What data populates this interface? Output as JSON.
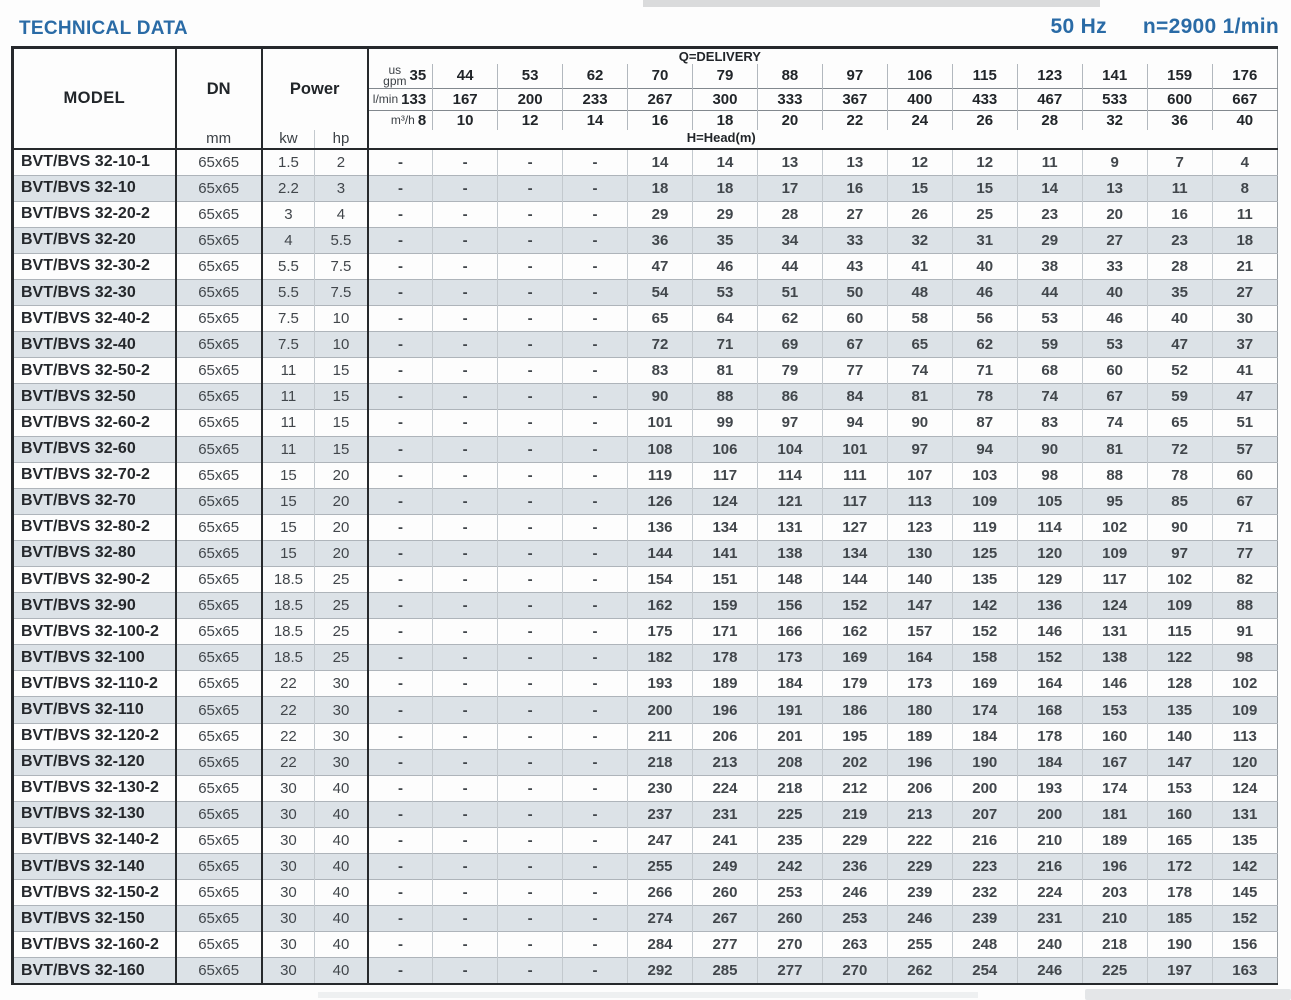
{
  "title": "TECHNICAL DATA",
  "frequency": "50 Hz",
  "speed": "n=2900 1/min",
  "table": {
    "model_header": "MODEL",
    "dn_header": "DN",
    "dn_unit": "mm",
    "power_header": "Power",
    "power_units": [
      "kw",
      "hp"
    ],
    "delivery_header": "Q=DELIVERY",
    "head_header": "H=Head(m)",
    "unit_rows": [
      {
        "unit": "us gpm",
        "values": [
          "35",
          "44",
          "53",
          "62",
          "70",
          "79",
          "88",
          "97",
          "106",
          "115",
          "123",
          "141",
          "159",
          "176"
        ]
      },
      {
        "unit": "l/min",
        "values": [
          "133",
          "167",
          "200",
          "233",
          "267",
          "300",
          "333",
          "367",
          "400",
          "433",
          "467",
          "533",
          "600",
          "667"
        ]
      },
      {
        "unit": "m³/h",
        "values": [
          "8",
          "10",
          "12",
          "14",
          "16",
          "18",
          "20",
          "22",
          "24",
          "26",
          "28",
          "32",
          "36",
          "40"
        ]
      }
    ],
    "rows": [
      {
        "model": "BVT/BVS 32-10-1",
        "dn": "65x65",
        "kw": "1.5",
        "hp": "2",
        "head": [
          "-",
          "-",
          "-",
          "-",
          "14",
          "14",
          "13",
          "13",
          "12",
          "12",
          "11",
          "9",
          "7",
          "4"
        ]
      },
      {
        "model": "BVT/BVS 32-10",
        "dn": "65x65",
        "kw": "2.2",
        "hp": "3",
        "head": [
          "-",
          "-",
          "-",
          "-",
          "18",
          "18",
          "17",
          "16",
          "15",
          "15",
          "14",
          "13",
          "11",
          "8"
        ]
      },
      {
        "model": "BVT/BVS 32-20-2",
        "dn": "65x65",
        "kw": "3",
        "hp": "4",
        "head": [
          "-",
          "-",
          "-",
          "-",
          "29",
          "29",
          "28",
          "27",
          "26",
          "25",
          "23",
          "20",
          "16",
          "11"
        ]
      },
      {
        "model": "BVT/BVS 32-20",
        "dn": "65x65",
        "kw": "4",
        "hp": "5.5",
        "head": [
          "-",
          "-",
          "-",
          "-",
          "36",
          "35",
          "34",
          "33",
          "32",
          "31",
          "29",
          "27",
          "23",
          "18"
        ]
      },
      {
        "model": "BVT/BVS 32-30-2",
        "dn": "65x65",
        "kw": "5.5",
        "hp": "7.5",
        "head": [
          "-",
          "-",
          "-",
          "-",
          "47",
          "46",
          "44",
          "43",
          "41",
          "40",
          "38",
          "33",
          "28",
          "21"
        ]
      },
      {
        "model": "BVT/BVS 32-30",
        "dn": "65x65",
        "kw": "5.5",
        "hp": "7.5",
        "head": [
          "-",
          "-",
          "-",
          "-",
          "54",
          "53",
          "51",
          "50",
          "48",
          "46",
          "44",
          "40",
          "35",
          "27"
        ]
      },
      {
        "model": "BVT/BVS 32-40-2",
        "dn": "65x65",
        "kw": "7.5",
        "hp": "10",
        "head": [
          "-",
          "-",
          "-",
          "-",
          "65",
          "64",
          "62",
          "60",
          "58",
          "56",
          "53",
          "46",
          "40",
          "30"
        ]
      },
      {
        "model": "BVT/BVS 32-40",
        "dn": "65x65",
        "kw": "7.5",
        "hp": "10",
        "head": [
          "-",
          "-",
          "-",
          "-",
          "72",
          "71",
          "69",
          "67",
          "65",
          "62",
          "59",
          "53",
          "47",
          "37"
        ]
      },
      {
        "model": "BVT/BVS 32-50-2",
        "dn": "65x65",
        "kw": "11",
        "hp": "15",
        "head": [
          "-",
          "-",
          "-",
          "-",
          "83",
          "81",
          "79",
          "77",
          "74",
          "71",
          "68",
          "60",
          "52",
          "41"
        ]
      },
      {
        "model": "BVT/BVS 32-50",
        "dn": "65x65",
        "kw": "11",
        "hp": "15",
        "head": [
          "-",
          "-",
          "-",
          "-",
          "90",
          "88",
          "86",
          "84",
          "81",
          "78",
          "74",
          "67",
          "59",
          "47"
        ]
      },
      {
        "model": "BVT/BVS 32-60-2",
        "dn": "65x65",
        "kw": "11",
        "hp": "15",
        "head": [
          "-",
          "-",
          "-",
          "-",
          "101",
          "99",
          "97",
          "94",
          "90",
          "87",
          "83",
          "74",
          "65",
          "51"
        ]
      },
      {
        "model": "BVT/BVS 32-60",
        "dn": "65x65",
        "kw": "11",
        "hp": "15",
        "head": [
          "-",
          "-",
          "-",
          "-",
          "108",
          "106",
          "104",
          "101",
          "97",
          "94",
          "90",
          "81",
          "72",
          "57"
        ]
      },
      {
        "model": "BVT/BVS 32-70-2",
        "dn": "65x65",
        "kw": "15",
        "hp": "20",
        "head": [
          "-",
          "-",
          "-",
          "-",
          "119",
          "117",
          "114",
          "111",
          "107",
          "103",
          "98",
          "88",
          "78",
          "60"
        ]
      },
      {
        "model": "BVT/BVS 32-70",
        "dn": "65x65",
        "kw": "15",
        "hp": "20",
        "head": [
          "-",
          "-",
          "-",
          "-",
          "126",
          "124",
          "121",
          "117",
          "113",
          "109",
          "105",
          "95",
          "85",
          "67"
        ]
      },
      {
        "model": "BVT/BVS 32-80-2",
        "dn": "65x65",
        "kw": "15",
        "hp": "20",
        "head": [
          "-",
          "-",
          "-",
          "-",
          "136",
          "134",
          "131",
          "127",
          "123",
          "119",
          "114",
          "102",
          "90",
          "71"
        ]
      },
      {
        "model": "BVT/BVS 32-80",
        "dn": "65x65",
        "kw": "15",
        "hp": "20",
        "head": [
          "-",
          "-",
          "-",
          "-",
          "144",
          "141",
          "138",
          "134",
          "130",
          "125",
          "120",
          "109",
          "97",
          "77"
        ]
      },
      {
        "model": "BVT/BVS 32-90-2",
        "dn": "65x65",
        "kw": "18.5",
        "hp": "25",
        "head": [
          "-",
          "-",
          "-",
          "-",
          "154",
          "151",
          "148",
          "144",
          "140",
          "135",
          "129",
          "117",
          "102",
          "82"
        ]
      },
      {
        "model": "BVT/BVS 32-90",
        "dn": "65x65",
        "kw": "18.5",
        "hp": "25",
        "head": [
          "-",
          "-",
          "-",
          "-",
          "162",
          "159",
          "156",
          "152",
          "147",
          "142",
          "136",
          "124",
          "109",
          "88"
        ]
      },
      {
        "model": "BVT/BVS 32-100-2",
        "dn": "65x65",
        "kw": "18.5",
        "hp": "25",
        "head": [
          "-",
          "-",
          "-",
          "-",
          "175",
          "171",
          "166",
          "162",
          "157",
          "152",
          "146",
          "131",
          "115",
          "91"
        ]
      },
      {
        "model": "BVT/BVS 32-100",
        "dn": "65x65",
        "kw": "18.5",
        "hp": "25",
        "head": [
          "-",
          "-",
          "-",
          "-",
          "182",
          "178",
          "173",
          "169",
          "164",
          "158",
          "152",
          "138",
          "122",
          "98"
        ]
      },
      {
        "model": "BVT/BVS 32-110-2",
        "dn": "65x65",
        "kw": "22",
        "hp": "30",
        "head": [
          "-",
          "-",
          "-",
          "-",
          "193",
          "189",
          "184",
          "179",
          "173",
          "169",
          "164",
          "146",
          "128",
          "102"
        ]
      },
      {
        "model": "BVT/BVS 32-110",
        "dn": "65x65",
        "kw": "22",
        "hp": "30",
        "head": [
          "-",
          "-",
          "-",
          "-",
          "200",
          "196",
          "191",
          "186",
          "180",
          "174",
          "168",
          "153",
          "135",
          "109"
        ]
      },
      {
        "model": "BVT/BVS 32-120-2",
        "dn": "65x65",
        "kw": "22",
        "hp": "30",
        "head": [
          "-",
          "-",
          "-",
          "-",
          "211",
          "206",
          "201",
          "195",
          "189",
          "184",
          "178",
          "160",
          "140",
          "113"
        ]
      },
      {
        "model": "BVT/BVS 32-120",
        "dn": "65x65",
        "kw": "22",
        "hp": "30",
        "head": [
          "-",
          "-",
          "-",
          "-",
          "218",
          "213",
          "208",
          "202",
          "196",
          "190",
          "184",
          "167",
          "147",
          "120"
        ]
      },
      {
        "model": "BVT/BVS 32-130-2",
        "dn": "65x65",
        "kw": "30",
        "hp": "40",
        "head": [
          "-",
          "-",
          "-",
          "-",
          "230",
          "224",
          "218",
          "212",
          "206",
          "200",
          "193",
          "174",
          "153",
          "124"
        ]
      },
      {
        "model": "BVT/BVS 32-130",
        "dn": "65x65",
        "kw": "30",
        "hp": "40",
        "head": [
          "-",
          "-",
          "-",
          "-",
          "237",
          "231",
          "225",
          "219",
          "213",
          "207",
          "200",
          "181",
          "160",
          "131"
        ]
      },
      {
        "model": "BVT/BVS 32-140-2",
        "dn": "65x65",
        "kw": "30",
        "hp": "40",
        "head": [
          "-",
          "-",
          "-",
          "-",
          "247",
          "241",
          "235",
          "229",
          "222",
          "216",
          "210",
          "189",
          "165",
          "135"
        ]
      },
      {
        "model": "BVT/BVS 32-140",
        "dn": "65x65",
        "kw": "30",
        "hp": "40",
        "head": [
          "-",
          "-",
          "-",
          "-",
          "255",
          "249",
          "242",
          "236",
          "229",
          "223",
          "216",
          "196",
          "172",
          "142"
        ]
      },
      {
        "model": "BVT/BVS 32-150-2",
        "dn": "65x65",
        "kw": "30",
        "hp": "40",
        "head": [
          "-",
          "-",
          "-",
          "-",
          "266",
          "260",
          "253",
          "246",
          "239",
          "232",
          "224",
          "203",
          "178",
          "145"
        ]
      },
      {
        "model": "BVT/BVS 32-150",
        "dn": "65x65",
        "kw": "30",
        "hp": "40",
        "head": [
          "-",
          "-",
          "-",
          "-",
          "274",
          "267",
          "260",
          "253",
          "246",
          "239",
          "231",
          "210",
          "185",
          "152"
        ]
      },
      {
        "model": "BVT/BVS 32-160-2",
        "dn": "65x65",
        "kw": "30",
        "hp": "40",
        "head": [
          "-",
          "-",
          "-",
          "-",
          "284",
          "277",
          "270",
          "263",
          "255",
          "248",
          "240",
          "218",
          "190",
          "156"
        ]
      },
      {
        "model": "BVT/BVS 32-160",
        "dn": "65x65",
        "kw": "30",
        "hp": "40",
        "head": [
          "-",
          "-",
          "-",
          "-",
          "292",
          "285",
          "277",
          "270",
          "262",
          "254",
          "246",
          "225",
          "197",
          "163"
        ]
      }
    ]
  }
}
